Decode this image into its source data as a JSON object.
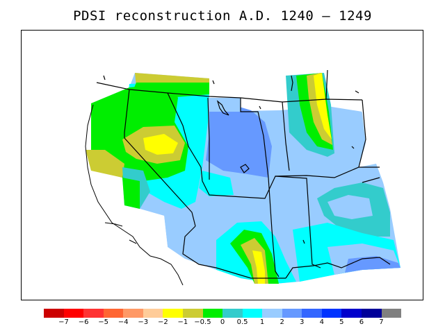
{
  "title": "PDSI reconstruction A.D. 1240 – 1249",
  "legend": {
    "colors": [
      "#cc0000",
      "#ff0000",
      "#ff3333",
      "#ff6633",
      "#ff9966",
      "#ffcc99",
      "#ffff00",
      "#cccc33",
      "#00ee00",
      "#33cccc",
      "#00ffff",
      "#99ccff",
      "#6699ff",
      "#3366ff",
      "#0033ff",
      "#0000cc",
      "#000099",
      "#808080"
    ],
    "ticks": [
      "−7",
      "−6",
      "−5",
      "−4",
      "−3",
      "−2",
      "−1",
      "−0.5",
      "0",
      "0.5",
      "1",
      "2",
      "3",
      "4",
      "5",
      "6",
      "7"
    ]
  },
  "colors": {
    "background": "#ffffff",
    "boundary": "#000000"
  }
}
